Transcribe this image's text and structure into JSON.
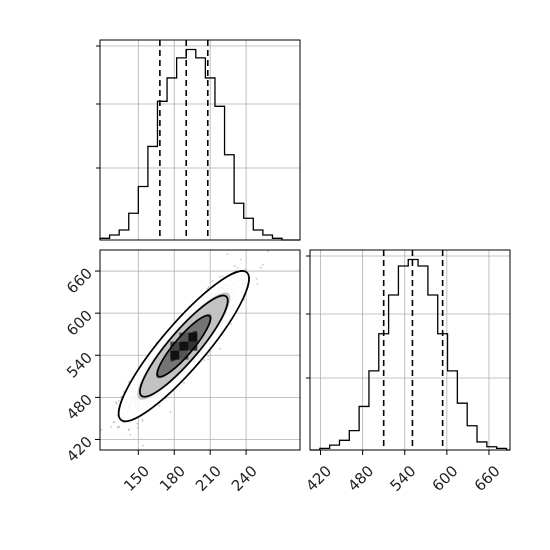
{
  "chart_data": [
    {
      "type": "histogram",
      "panel": "top-left",
      "variable_axis": "x",
      "xlim": [
        118,
        285
      ],
      "bin_edges": [
        118,
        126,
        134,
        142,
        150,
        158,
        166,
        174,
        182,
        190,
        198,
        206,
        214,
        222,
        230,
        238,
        246,
        254,
        262,
        270,
        278,
        285
      ],
      "counts": [
        1,
        3,
        6,
        16,
        32,
        56,
        83,
        97,
        109,
        114,
        109,
        97,
        80,
        51,
        22,
        13,
        6,
        3,
        1,
        0,
        0
      ],
      "quantile_lines": [
        168,
        190,
        208
      ],
      "x_ticks": [
        150,
        180,
        210,
        240
      ],
      "grid": true,
      "tick_labels_shown": false
    },
    {
      "type": "scatter",
      "panel": "bottom-left",
      "subtype": "2d-density-with-contours",
      "xlim": [
        118,
        285
      ],
      "ylim": [
        405,
        690
      ],
      "x_ticks": [
        150,
        180,
        210,
        240
      ],
      "y_ticks": [
        420,
        480,
        540,
        600,
        660
      ],
      "x_tick_labels": [
        "150",
        "180",
        "210",
        "240"
      ],
      "y_tick_labels": [
        "420",
        "480",
        "540",
        "600",
        "660"
      ],
      "center": [
        188,
        553
      ],
      "spread": [
        22,
        44
      ],
      "correlation": 0.9,
      "contour_levels": [
        "inner",
        "middle",
        "outer"
      ],
      "grid": true
    },
    {
      "type": "histogram",
      "panel": "bottom-right",
      "variable_axis": "y",
      "xlim": [
        405,
        690
      ],
      "bin_edges": [
        405,
        419,
        433,
        447,
        461,
        475,
        489,
        503,
        517,
        531,
        545,
        559,
        573,
        587,
        601,
        615,
        629,
        643,
        657,
        671,
        685,
        690
      ],
      "counts": [
        0,
        1,
        3,
        6,
        12,
        27,
        49,
        72,
        96,
        114,
        118,
        114,
        96,
        72,
        49,
        29,
        15,
        5,
        2,
        1,
        0
      ],
      "quantile_lines": [
        510,
        551,
        594
      ],
      "x_ticks": [
        420,
        480,
        540,
        600,
        660
      ],
      "x_tick_labels": [
        "420",
        "480",
        "540",
        "600",
        "660"
      ],
      "grid": true
    }
  ]
}
